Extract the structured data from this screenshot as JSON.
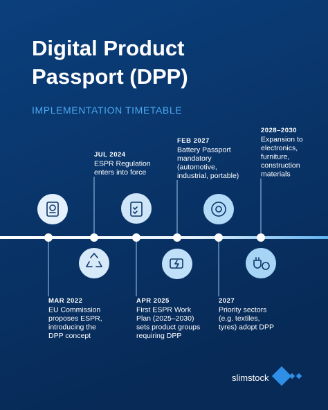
{
  "header": {
    "title_lines": [
      "Digital Product",
      "Passport (DPP)"
    ],
    "subtitle": "IMPLEMENTATION TIMETABLE"
  },
  "events": [
    {
      "date": "MAR 2022",
      "lines": [
        "EU Commission",
        "proposes ESPR,",
        "introducing the",
        "DPP concept"
      ]
    },
    {
      "date": "JUL 2024",
      "lines": [
        "ESPR Regulation",
        "enters into force"
      ]
    },
    {
      "date": "APR 2025",
      "lines": [
        "First ESPR Work",
        "Plan (2025–2030)",
        "sets product groups",
        "requiring DPP"
      ]
    },
    {
      "date": "FEB 2027",
      "lines": [
        "Battery Passport",
        "mandatory",
        "(automotive,",
        "industrial, portable)"
      ]
    },
    {
      "date": "2027",
      "lines": [
        "Priority sectors",
        "(e.g. textiles,",
        "tyres) adopt DPP"
      ]
    },
    {
      "date": "2028–2030",
      "lines": [
        "Expansion to",
        "electronics,",
        "furniture,",
        "construction",
        "materials"
      ]
    }
  ],
  "brand": "slimstock"
}
